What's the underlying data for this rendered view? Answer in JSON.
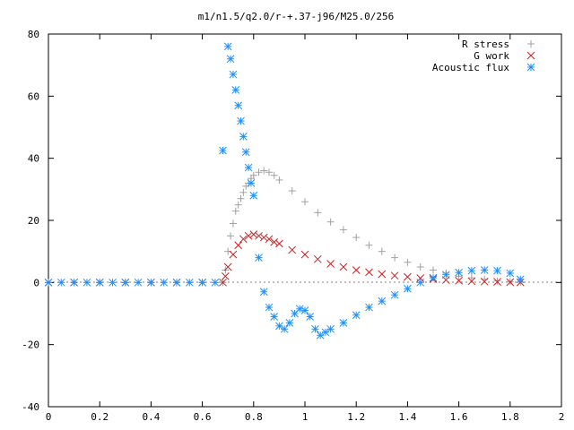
{
  "chart_data": {
    "type": "scatter",
    "title": "m1/n1.5/q2.0/r-+.37-j96/M25.0/256",
    "xlabel": "",
    "ylabel": "",
    "xlim": [
      0,
      2
    ],
    "ylim": [
      -40,
      80
    ],
    "x_ticks": [
      "0",
      "0.2",
      "0.4",
      "0.6",
      "0.8",
      "1",
      "1.2",
      "1.4",
      "1.6",
      "1.8",
      "2"
    ],
    "y_ticks": [
      "-40",
      "-20",
      "0",
      "20",
      "40",
      "60",
      "80"
    ],
    "grid": false,
    "legend_position": "top-right",
    "series": [
      {
        "name": "R stress",
        "marker": "plus",
        "color": "#a0a0a0",
        "x": [
          0.0,
          0.1,
          0.2,
          0.3,
          0.4,
          0.5,
          0.6,
          0.68,
          0.69,
          0.7,
          0.71,
          0.72,
          0.73,
          0.74,
          0.75,
          0.76,
          0.77,
          0.78,
          0.79,
          0.8,
          0.82,
          0.84,
          0.86,
          0.88,
          0.9,
          0.95,
          1.0,
          1.05,
          1.1,
          1.15,
          1.2,
          1.25,
          1.3,
          1.35,
          1.4,
          1.45,
          1.5,
          1.55,
          1.6,
          1.65,
          1.7,
          1.75,
          1.8,
          1.84
        ],
        "y": [
          0,
          0,
          0,
          0,
          0,
          0,
          0,
          0,
          4,
          10,
          15,
          19,
          23,
          25,
          27,
          29,
          31,
          32,
          33.5,
          34.5,
          35.5,
          36,
          35.5,
          34.5,
          33,
          29.5,
          26,
          22.5,
          19.5,
          17,
          14.5,
          12,
          10,
          8,
          6.5,
          5,
          4,
          3,
          2,
          1.5,
          1,
          0.5,
          0.3,
          0.1
        ]
      },
      {
        "name": "G work",
        "marker": "cross",
        "color": "#cc2222",
        "x": [
          0.0,
          0.1,
          0.2,
          0.3,
          0.4,
          0.5,
          0.6,
          0.68,
          0.69,
          0.7,
          0.72,
          0.74,
          0.76,
          0.78,
          0.8,
          0.82,
          0.84,
          0.86,
          0.88,
          0.9,
          0.95,
          1.0,
          1.05,
          1.1,
          1.15,
          1.2,
          1.25,
          1.3,
          1.35,
          1.4,
          1.45,
          1.5,
          1.55,
          1.6,
          1.65,
          1.7,
          1.75,
          1.8,
          1.84
        ],
        "y": [
          0,
          0,
          0,
          0,
          0,
          0,
          0,
          0,
          2,
          5,
          9,
          12,
          14,
          15,
          15.5,
          15,
          14.5,
          14,
          13,
          12.5,
          10.5,
          9,
          7.5,
          6,
          5,
          4,
          3.3,
          2.7,
          2.2,
          1.8,
          1.4,
          1.1,
          0.8,
          0.6,
          0.4,
          0.3,
          0.2,
          0.1,
          0.05
        ]
      },
      {
        "name": "Acoustic flux",
        "marker": "star",
        "color": "#1e90ff",
        "x": [
          0.0,
          0.05,
          0.1,
          0.15,
          0.2,
          0.25,
          0.3,
          0.35,
          0.4,
          0.45,
          0.5,
          0.55,
          0.6,
          0.65,
          0.68,
          0.7,
          0.71,
          0.72,
          0.73,
          0.74,
          0.75,
          0.76,
          0.77,
          0.78,
          0.79,
          0.8,
          0.82,
          0.84,
          0.86,
          0.88,
          0.9,
          0.92,
          0.94,
          0.96,
          0.98,
          1.0,
          1.02,
          1.04,
          1.06,
          1.08,
          1.1,
          1.15,
          1.2,
          1.25,
          1.3,
          1.35,
          1.4,
          1.45,
          1.5,
          1.55,
          1.6,
          1.65,
          1.7,
          1.75,
          1.8,
          1.84
        ],
        "y": [
          0,
          0,
          0,
          0,
          0,
          0,
          0,
          0,
          0,
          0,
          0,
          0,
          0,
          0,
          42.5,
          76,
          72,
          67,
          62,
          57,
          52,
          47,
          42,
          37,
          32,
          28,
          8,
          -3,
          -8,
          -11,
          -14,
          -15,
          -13,
          -10,
          -8.5,
          -9,
          -11,
          -15,
          -17,
          -16,
          -15,
          -13,
          -10.5,
          -8,
          -6,
          -4,
          -2,
          0,
          1.5,
          2.5,
          3.2,
          3.8,
          4,
          3.8,
          3,
          1
        ]
      }
    ]
  }
}
